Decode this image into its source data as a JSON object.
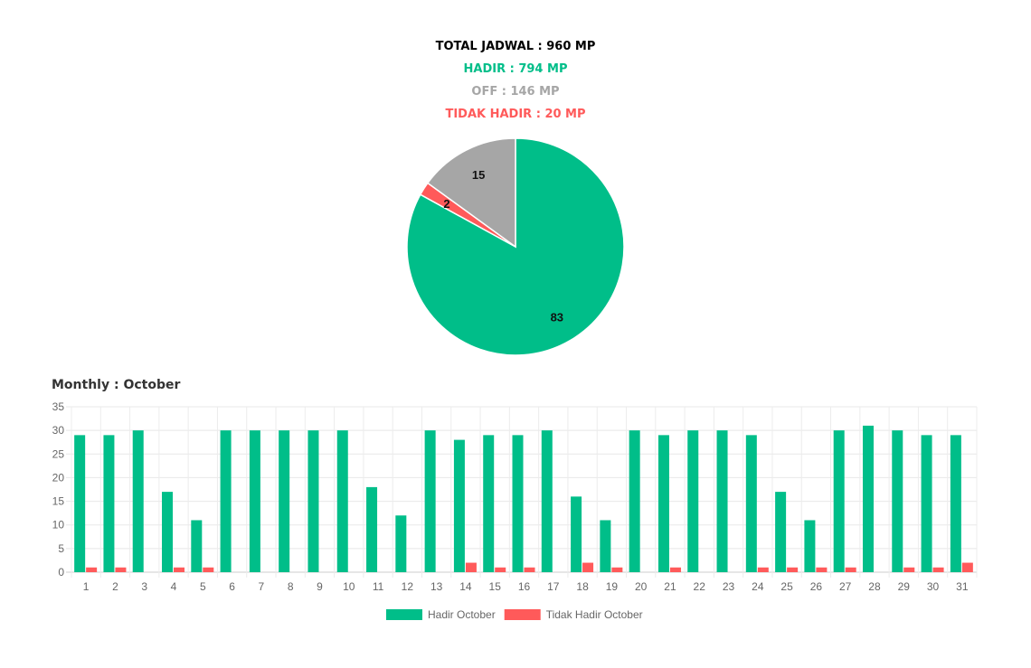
{
  "summary": {
    "total": "TOTAL JADWAL : 960 MP",
    "hadir": "HADIR : 794 MP",
    "off": "OFF : 146 MP",
    "tidak_hadir": "TIDAK HADIR : 20 MP"
  },
  "colors": {
    "hadir": "#00be89",
    "off": "#a6a6a6",
    "tidak": "#ff5a5a",
    "total": "#000000"
  },
  "monthly_title": "Monthly : October",
  "chart_data": [
    {
      "type": "pie",
      "labels": [
        "Hadir",
        "Tidak Hadir",
        "Off"
      ],
      "values": [
        83,
        2,
        15
      ],
      "colors": [
        "#00be89",
        "#ff5a5a",
        "#a6a6a6"
      ]
    },
    {
      "type": "bar",
      "categories": [
        "1",
        "2",
        "3",
        "4",
        "5",
        "6",
        "7",
        "8",
        "9",
        "10",
        "11",
        "12",
        "13",
        "14",
        "15",
        "16",
        "17",
        "18",
        "19",
        "20",
        "21",
        "22",
        "23",
        "24",
        "25",
        "26",
        "27",
        "28",
        "29",
        "30",
        "31"
      ],
      "series": [
        {
          "name": "Hadir October",
          "color": "#00be89",
          "values": [
            29,
            29,
            30,
            17,
            11,
            30,
            30,
            30,
            30,
            30,
            18,
            12,
            30,
            28,
            29,
            29,
            30,
            16,
            11,
            30,
            29,
            30,
            30,
            29,
            17,
            11,
            30,
            31,
            30,
            29,
            29
          ]
        },
        {
          "name": "Tidak Hadir October",
          "color": "#ff5a5a",
          "values": [
            1,
            1,
            0,
            1,
            1,
            0,
            0,
            0,
            0,
            0,
            0,
            0,
            0,
            2,
            1,
            1,
            0,
            2,
            1,
            0,
            1,
            0,
            0,
            1,
            1,
            1,
            1,
            0,
            1,
            1,
            2
          ]
        }
      ],
      "ylim": [
        0,
        35
      ],
      "yticks": [
        0,
        5,
        10,
        15,
        20,
        25,
        30,
        35
      ],
      "grid": true,
      "legend": "bottom"
    }
  ]
}
